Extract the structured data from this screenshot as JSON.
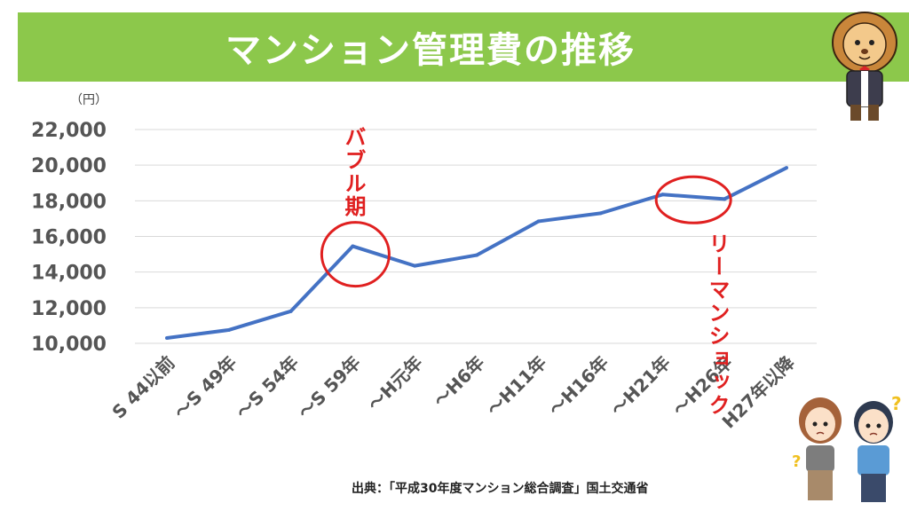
{
  "title": "マンション管理費の推移",
  "source": "出典：「平成30年度マンション総合調査」国土交通省",
  "colors": {
    "banner": "#8cc84b",
    "line": "#4472c4",
    "highlight": "#e02020",
    "grid": "#d9d9d9"
  },
  "chart_data": {
    "type": "line",
    "unit_label": "（円）",
    "categories": [
      "S 44以前",
      "～S 49年",
      "～S 54年",
      "～S 59年",
      "～H元年",
      "～H6年",
      "～H11年",
      "～H16年",
      "～H21年",
      "～H26年",
      "H27年以降"
    ],
    "values": [
      10300,
      10750,
      11800,
      15450,
      14350,
      14950,
      16850,
      17300,
      18350,
      18100,
      19850
    ],
    "ylim": [
      10000,
      22000
    ],
    "yticks": [
      10000,
      12000,
      14000,
      16000,
      18000,
      20000,
      22000
    ],
    "ytick_labels": [
      "10,000",
      "12,000",
      "14,000",
      "16,000",
      "18,000",
      "20,000",
      "22,000"
    ],
    "grid": true,
    "annotations": [
      {
        "text": "バブル期",
        "category_index": 3,
        "value": 15000
      },
      {
        "text": "リーマンショック",
        "category_index": 9,
        "value": 18350
      }
    ]
  },
  "mascots": [
    {
      "name": "lion-mascot"
    },
    {
      "name": "woman-confused"
    },
    {
      "name": "man-confused"
    }
  ]
}
